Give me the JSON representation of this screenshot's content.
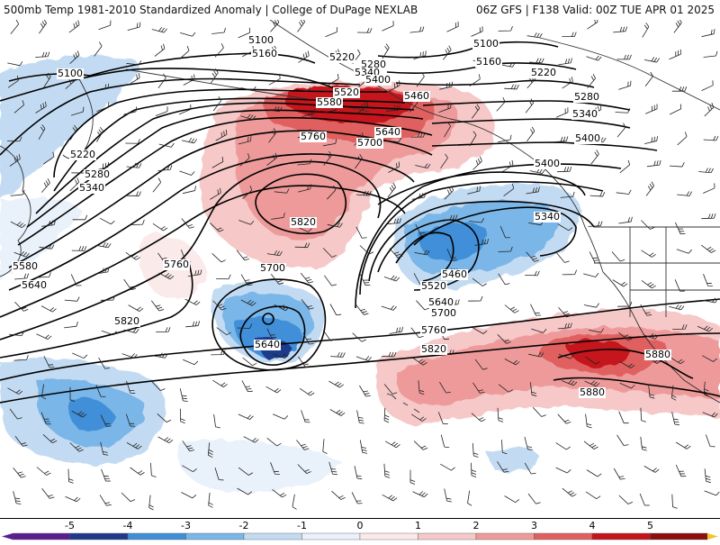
{
  "header": {
    "left": "500mb Temp 1981-2010 Standardized Anomaly | College of DuPage NEXLAB",
    "right": "06Z GFS | F138 Valid: 00Z TUE APR 01 2025"
  },
  "colors": {
    "neg5": "#5a1f8f",
    "neg4": "#1f3a8a",
    "neg3": "#3f8fd8",
    "neg2": "#7ab6e8",
    "neg1": "#c3dbf2",
    "zero_neg": "#e9f1fa",
    "zero_pos": "#fbeaea",
    "pos1": "#f6c8c8",
    "pos2": "#ee9a9a",
    "pos3": "#e06060",
    "pos4": "#c4141e",
    "pos5": "#8c0e0e",
    "pos_ext": "#f2c22e"
  },
  "contour_labels": [
    {
      "text": "5100",
      "id": "c5100-nw"
    },
    {
      "text": "5160",
      "id": "c5160-n"
    },
    {
      "text": "5220",
      "id": "c5220-n"
    },
    {
      "text": "5280",
      "id": "c5280-n"
    },
    {
      "text": "5340",
      "id": "c5340-n"
    },
    {
      "text": "5400",
      "id": "c5400-n"
    },
    {
      "text": "5460",
      "id": "c5460-n"
    },
    {
      "text": "5520",
      "id": "c5520-n"
    },
    {
      "text": "5580",
      "id": "c5580-n"
    },
    {
      "text": "5640",
      "id": "c5640-n"
    },
    {
      "text": "5700",
      "id": "c5700-n"
    },
    {
      "text": "5760",
      "id": "c5760-n"
    },
    {
      "text": "5820",
      "id": "c5820-high"
    },
    {
      "text": "5100",
      "id": "c5100-w"
    },
    {
      "text": "5220",
      "id": "c5220-w"
    },
    {
      "text": "5280",
      "id": "c5280-w"
    },
    {
      "text": "5340",
      "id": "c5340-w"
    },
    {
      "text": "5580",
      "id": "c5580-w"
    },
    {
      "text": "5640",
      "id": "c5640-w"
    },
    {
      "text": "5760",
      "id": "c5760-w"
    },
    {
      "text": "5700",
      "id": "c5700-low"
    },
    {
      "text": "5640",
      "id": "c5640-low"
    },
    {
      "text": "5820",
      "id": "c5820-w"
    },
    {
      "text": "5100",
      "id": "c5100-ne"
    },
    {
      "text": "5160",
      "id": "c5160-ne"
    },
    {
      "text": "5220",
      "id": "c5220-ne"
    },
    {
      "text": "5280",
      "id": "c5280-ne"
    },
    {
      "text": "5340",
      "id": "c5340-ne"
    },
    {
      "text": "5400",
      "id": "c5400-ne"
    },
    {
      "text": "5400",
      "id": "c5400-trough"
    },
    {
      "text": "5340",
      "id": "c5340-trough"
    },
    {
      "text": "5460",
      "id": "c5460-trough"
    },
    {
      "text": "5520",
      "id": "c5520-trough"
    },
    {
      "text": "5640",
      "id": "c5640-trough"
    },
    {
      "text": "5700",
      "id": "c5700-trough"
    },
    {
      "text": "5760",
      "id": "c5760-s"
    },
    {
      "text": "5820",
      "id": "c5820-s"
    },
    {
      "text": "5880",
      "id": "c5880-e"
    },
    {
      "text": "5880",
      "id": "c5880-se"
    }
  ],
  "colorbar": {
    "ticks": [
      "-5",
      "-4",
      "-3",
      "-2",
      "-1",
      "0",
      "1",
      "2",
      "3",
      "4",
      "5"
    ]
  }
}
